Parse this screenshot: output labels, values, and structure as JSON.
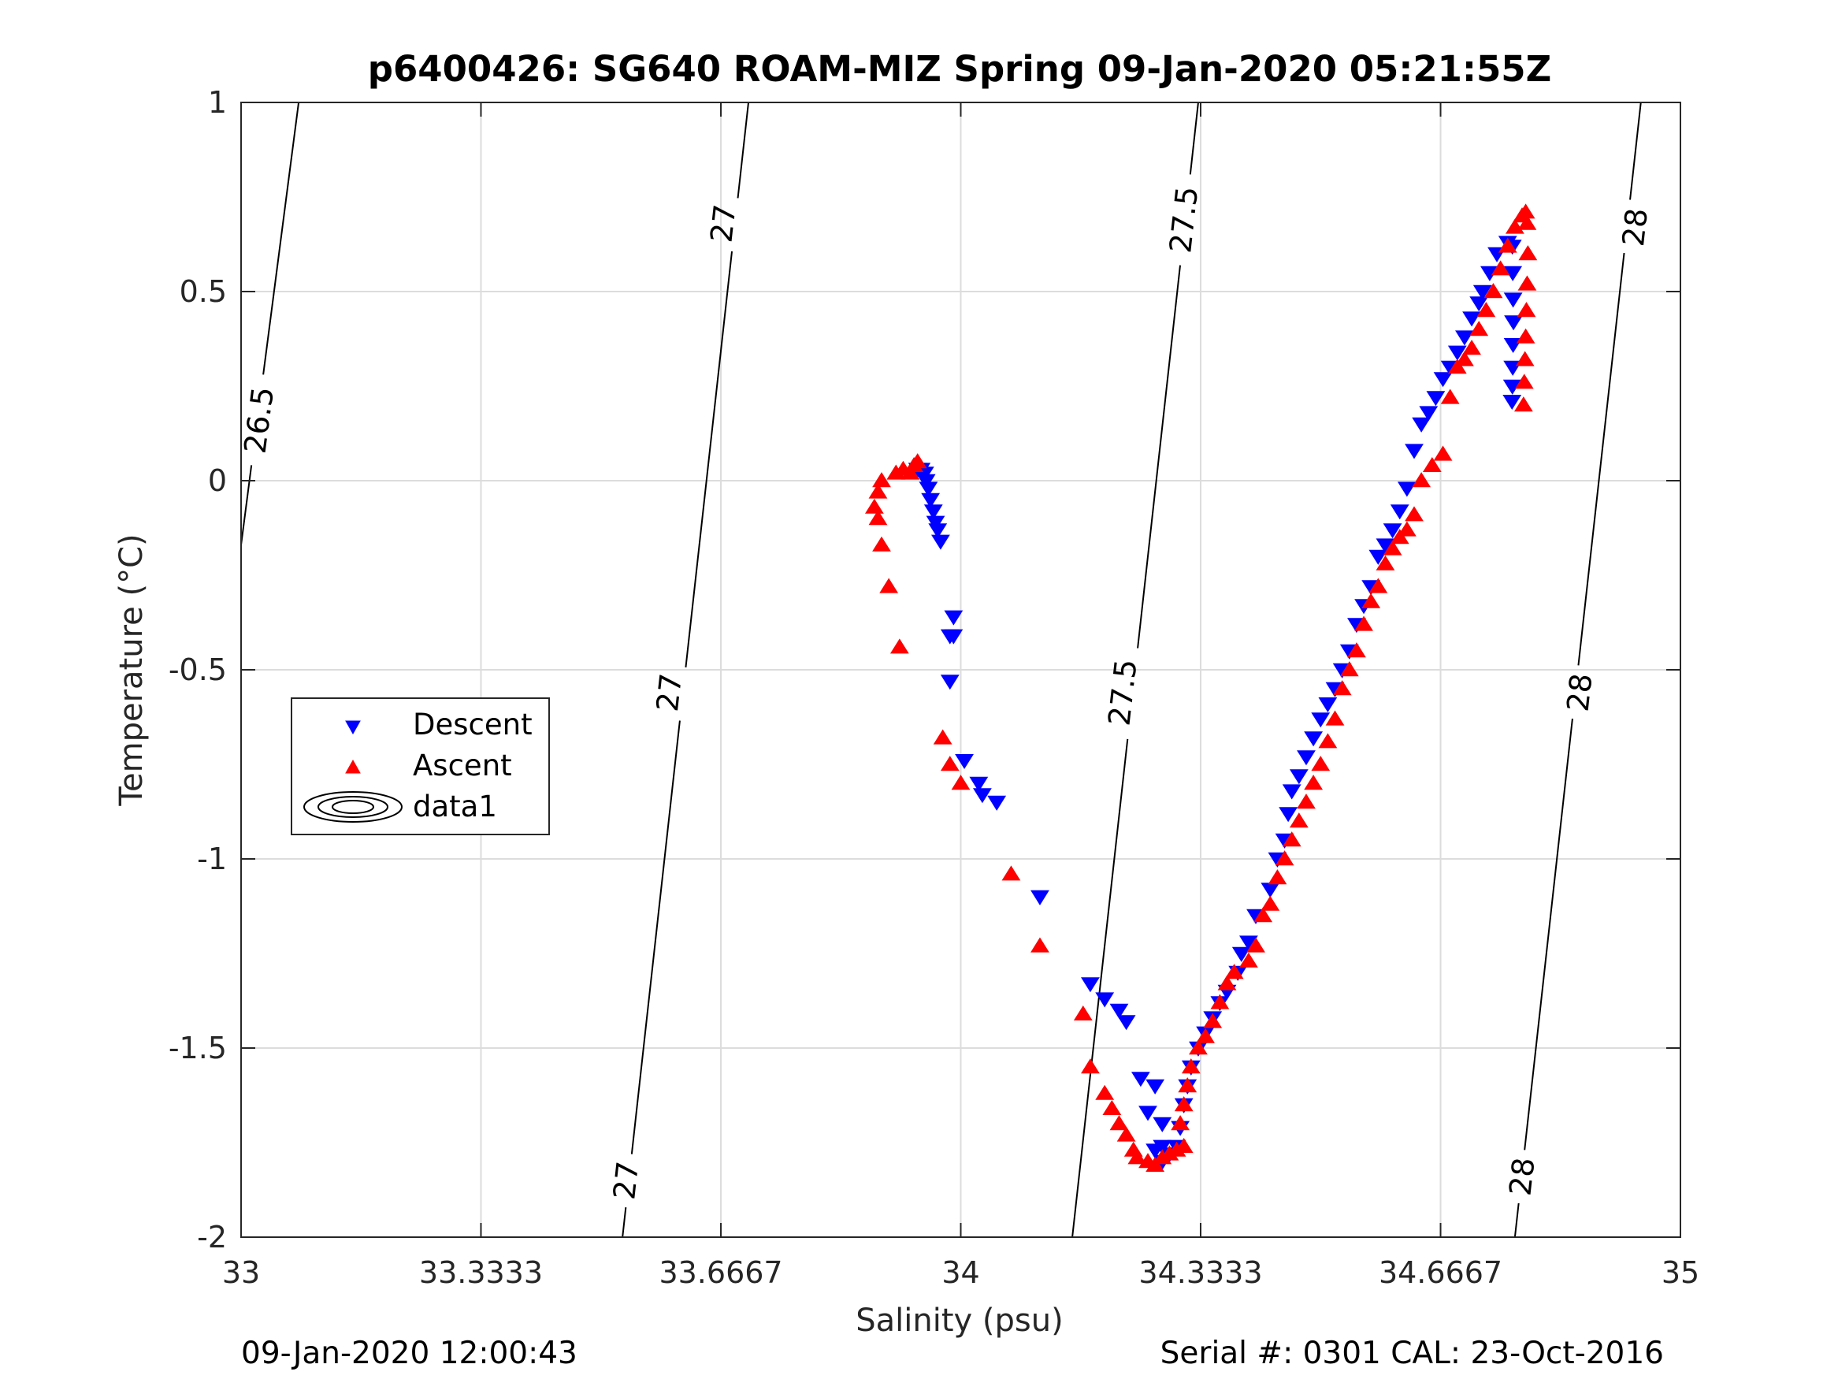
{
  "chart_data": {
    "type": "scatter",
    "title": "p6400426: SG640 ROAM-MIZ Spring 09-Jan-2020 05:21:55Z",
    "xlabel": "Salinity (psu)",
    "ylabel": "Temperature (°C)",
    "xlim": [
      33,
      35
    ],
    "ylim": [
      -2,
      1
    ],
    "x_ticks": [
      33,
      33.3333,
      33.6667,
      34,
      34.3333,
      34.6667,
      35
    ],
    "x_tick_labels": [
      "33",
      "33.3333",
      "33.6667",
      "34",
      "34.3333",
      "34.6667",
      "35"
    ],
    "y_ticks": [
      1,
      0.5,
      0,
      -0.5,
      -1,
      -1.5,
      -2
    ],
    "y_tick_labels": [
      "1",
      "0.5",
      "0",
      "-0.5",
      "-1",
      "-1.5",
      "-2"
    ],
    "grid": true,
    "legend_position": "middle-left",
    "series": [
      {
        "name": "Descent",
        "marker": "triangle-down",
        "color": "#0000ff",
        "points": [
          [
            33.94,
            0.03
          ],
          [
            33.945,
            0.03
          ],
          [
            33.95,
            0.02
          ],
          [
            33.952,
            0.0
          ],
          [
            33.955,
            -0.02
          ],
          [
            33.958,
            -0.05
          ],
          [
            33.962,
            -0.08
          ],
          [
            33.965,
            -0.11
          ],
          [
            33.968,
            -0.13
          ],
          [
            33.972,
            -0.16
          ],
          [
            33.99,
            -0.36
          ],
          [
            33.985,
            -0.41
          ],
          [
            33.99,
            -0.41
          ],
          [
            33.985,
            -0.53
          ],
          [
            34.005,
            -0.74
          ],
          [
            34.025,
            -0.8
          ],
          [
            34.03,
            -0.83
          ],
          [
            34.05,
            -0.85
          ],
          [
            34.11,
            -1.1
          ],
          [
            34.18,
            -1.33
          ],
          [
            34.2,
            -1.37
          ],
          [
            34.22,
            -1.4
          ],
          [
            34.23,
            -1.43
          ],
          [
            34.25,
            -1.58
          ],
          [
            34.27,
            -1.6
          ],
          [
            34.26,
            -1.67
          ],
          [
            34.28,
            -1.7
          ],
          [
            34.27,
            -1.77
          ],
          [
            34.28,
            -1.76
          ],
          [
            34.29,
            -1.78
          ],
          [
            34.28,
            -1.8
          ],
          [
            34.3,
            -1.76
          ],
          [
            34.305,
            -1.71
          ],
          [
            34.31,
            -1.65
          ],
          [
            34.315,
            -1.6
          ],
          [
            34.32,
            -1.55
          ],
          [
            34.33,
            -1.5
          ],
          [
            34.34,
            -1.46
          ],
          [
            34.35,
            -1.42
          ],
          [
            34.36,
            -1.38
          ],
          [
            34.37,
            -1.35
          ],
          [
            34.385,
            -1.3
          ],
          [
            34.39,
            -1.25
          ],
          [
            34.4,
            -1.22
          ],
          [
            34.41,
            -1.15
          ],
          [
            34.43,
            -1.08
          ],
          [
            34.44,
            -1.0
          ],
          [
            34.45,
            -0.95
          ],
          [
            34.455,
            -0.88
          ],
          [
            34.46,
            -0.82
          ],
          [
            34.47,
            -0.78
          ],
          [
            34.48,
            -0.73
          ],
          [
            34.49,
            -0.68
          ],
          [
            34.5,
            -0.63
          ],
          [
            34.51,
            -0.59
          ],
          [
            34.52,
            -0.55
          ],
          [
            34.53,
            -0.5
          ],
          [
            34.54,
            -0.45
          ],
          [
            34.55,
            -0.38
          ],
          [
            34.56,
            -0.33
          ],
          [
            34.57,
            -0.28
          ],
          [
            34.58,
            -0.2
          ],
          [
            34.59,
            -0.17
          ],
          [
            34.6,
            -0.13
          ],
          [
            34.61,
            -0.08
          ],
          [
            34.62,
            -0.02
          ],
          [
            34.63,
            0.08
          ],
          [
            34.64,
            0.15
          ],
          [
            34.65,
            0.18
          ],
          [
            34.66,
            0.22
          ],
          [
            34.67,
            0.27
          ],
          [
            34.68,
            0.3
          ],
          [
            34.69,
            0.34
          ],
          [
            34.7,
            0.38
          ],
          [
            34.71,
            0.43
          ],
          [
            34.72,
            0.47
          ],
          [
            34.725,
            0.5
          ],
          [
            34.735,
            0.55
          ],
          [
            34.745,
            0.6
          ],
          [
            34.76,
            0.63
          ],
          [
            34.7665,
            0.62
          ],
          [
            34.767,
            0.55
          ],
          [
            34.7675,
            0.48
          ],
          [
            34.768,
            0.42
          ],
          [
            34.7675,
            0.36
          ],
          [
            34.767,
            0.3
          ],
          [
            34.7665,
            0.25
          ],
          [
            34.766,
            0.21
          ]
        ]
      },
      {
        "name": "Ascent",
        "marker": "triangle-up",
        "color": "#ff0000",
        "points": [
          [
            33.93,
            0.02
          ],
          [
            33.91,
            0.02
          ],
          [
            33.92,
            0.03
          ],
          [
            33.935,
            0.04
          ],
          [
            33.94,
            0.05
          ],
          [
            33.89,
            0.0
          ],
          [
            33.885,
            -0.03
          ],
          [
            33.88,
            -0.07
          ],
          [
            33.885,
            -0.1
          ],
          [
            33.89,
            -0.17
          ],
          [
            33.9,
            -0.28
          ],
          [
            33.915,
            -0.44
          ],
          [
            33.975,
            -0.68
          ],
          [
            33.985,
            -0.75
          ],
          [
            34.0,
            -0.8
          ],
          [
            34.07,
            -1.04
          ],
          [
            34.11,
            -1.23
          ],
          [
            34.17,
            -1.41
          ],
          [
            34.18,
            -1.55
          ],
          [
            34.2,
            -1.62
          ],
          [
            34.21,
            -1.66
          ],
          [
            34.22,
            -1.7
          ],
          [
            34.23,
            -1.73
          ],
          [
            34.24,
            -1.77
          ],
          [
            34.245,
            -1.79
          ],
          [
            34.26,
            -1.8
          ],
          [
            34.27,
            -1.81
          ],
          [
            34.28,
            -1.79
          ],
          [
            34.29,
            -1.78
          ],
          [
            34.3,
            -1.77
          ],
          [
            34.31,
            -1.76
          ],
          [
            34.305,
            -1.7
          ],
          [
            34.31,
            -1.65
          ],
          [
            34.315,
            -1.6
          ],
          [
            34.32,
            -1.55
          ],
          [
            34.33,
            -1.5
          ],
          [
            34.34,
            -1.47
          ],
          [
            34.35,
            -1.43
          ],
          [
            34.36,
            -1.38
          ],
          [
            34.37,
            -1.33
          ],
          [
            34.38,
            -1.3
          ],
          [
            34.4,
            -1.27
          ],
          [
            34.41,
            -1.23
          ],
          [
            34.42,
            -1.15
          ],
          [
            34.43,
            -1.12
          ],
          [
            34.44,
            -1.05
          ],
          [
            34.45,
            -1.0
          ],
          [
            34.46,
            -0.95
          ],
          [
            34.47,
            -0.9
          ],
          [
            34.48,
            -0.85
          ],
          [
            34.49,
            -0.8
          ],
          [
            34.5,
            -0.75
          ],
          [
            34.51,
            -0.69
          ],
          [
            34.52,
            -0.63
          ],
          [
            34.53,
            -0.55
          ],
          [
            34.54,
            -0.5
          ],
          [
            34.55,
            -0.45
          ],
          [
            34.56,
            -0.38
          ],
          [
            34.57,
            -0.32
          ],
          [
            34.58,
            -0.28
          ],
          [
            34.59,
            -0.22
          ],
          [
            34.6,
            -0.18
          ],
          [
            34.61,
            -0.15
          ],
          [
            34.62,
            -0.13
          ],
          [
            34.63,
            -0.09
          ],
          [
            34.64,
            0.0
          ],
          [
            34.655,
            0.04
          ],
          [
            34.67,
            0.07
          ],
          [
            34.68,
            0.22
          ],
          [
            34.69,
            0.3
          ],
          [
            34.7,
            0.32
          ],
          [
            34.71,
            0.35
          ],
          [
            34.72,
            0.4
          ],
          [
            34.73,
            0.45
          ],
          [
            34.74,
            0.5
          ],
          [
            34.75,
            0.56
          ],
          [
            34.76,
            0.62
          ],
          [
            34.77,
            0.67
          ],
          [
            34.78,
            0.7
          ],
          [
            34.785,
            0.71
          ],
          [
            34.787,
            0.68
          ],
          [
            34.788,
            0.6
          ],
          [
            34.787,
            0.52
          ],
          [
            34.786,
            0.45
          ],
          [
            34.785,
            0.38
          ],
          [
            34.784,
            0.32
          ],
          [
            34.783,
            0.26
          ],
          [
            34.782,
            0.2
          ]
        ]
      }
    ],
    "contours": [
      {
        "label": "26.5",
        "points": [
          [
            33.0,
            -0.17
          ],
          [
            33.08,
            1.0
          ]
        ],
        "label_at": [
          [
            33.025,
            0.16
          ]
        ]
      },
      {
        "label": "27",
        "points": [
          [
            33.53,
            -2.0
          ],
          [
            33.705,
            1.0
          ]
        ],
        "label_at": [
          [
            33.535,
            -1.85
          ],
          [
            33.595,
            -0.56
          ],
          [
            33.67,
            0.68
          ]
        ]
      },
      {
        "label": "27.5",
        "points": [
          [
            34.155,
            -2.0
          ],
          [
            34.33,
            1.0
          ]
        ],
        "label_at": [
          [
            34.225,
            -0.56
          ],
          [
            34.31,
            0.69
          ]
        ]
      },
      {
        "label": "28",
        "points": [
          [
            34.77,
            -2.0
          ],
          [
            34.945,
            1.0
          ]
        ],
        "label_at": [
          [
            34.78,
            -1.84
          ],
          [
            34.86,
            -0.56
          ],
          [
            34.937,
            0.67
          ]
        ]
      }
    ],
    "legend": {
      "entries": [
        "Descent",
        "Ascent",
        "data1"
      ]
    }
  },
  "footer": {
    "left": "09-Jan-2020 12:00:43",
    "right": "Serial #: 0301  CAL: 23-Oct-2016"
  }
}
